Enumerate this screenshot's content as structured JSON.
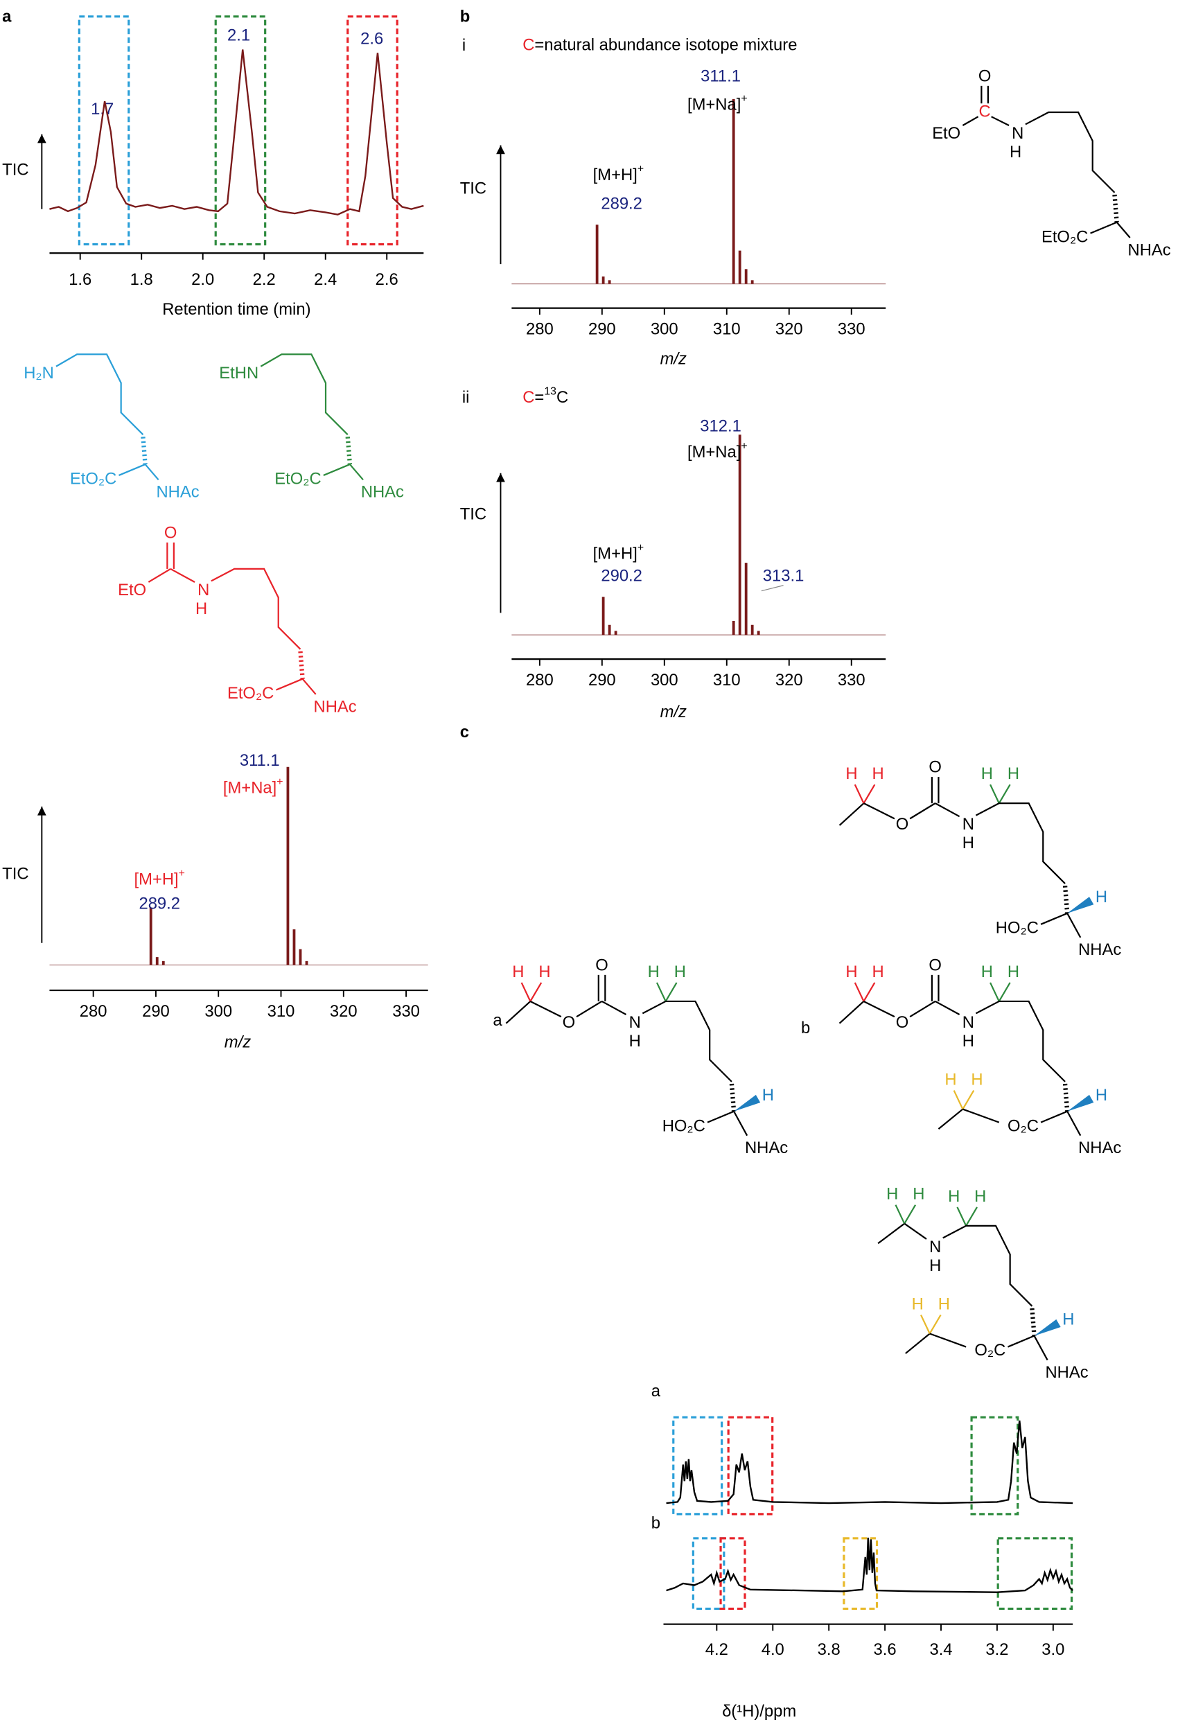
{
  "panel_labels": [
    "a",
    "b",
    "c"
  ],
  "chart_data": [
    {
      "type": "line",
      "y_label": "TIC",
      "x_label": "Retention time (min)",
      "peak_labels": [
        "1.7",
        "2.1",
        "2.6"
      ],
      "x": [
        1.5,
        1.53,
        1.56,
        1.59,
        1.62,
        1.65,
        1.68,
        1.7,
        1.72,
        1.75,
        1.78,
        1.82,
        1.86,
        1.9,
        1.94,
        1.98,
        2.02,
        2.05,
        2.08,
        2.1,
        2.13,
        2.16,
        2.18,
        2.21,
        2.25,
        2.3,
        2.35,
        2.4,
        2.44,
        2.48,
        2.51,
        2.53,
        2.57,
        2.6,
        2.62,
        2.65,
        2.68,
        2.72
      ],
      "values": [
        40,
        42,
        38,
        41,
        46,
        80,
        138,
        110,
        60,
        45,
        42,
        44,
        41,
        43,
        40,
        42,
        39,
        38,
        45,
        100,
        185,
        110,
        55,
        42,
        38,
        36,
        39,
        37,
        35,
        40,
        38,
        70,
        182,
        100,
        50,
        42,
        40,
        43
      ],
      "color": "#7a1a1a",
      "xlim": [
        1.5,
        2.72
      ],
      "ylim": [
        0,
        200
      ],
      "xticks": [
        1.6,
        1.8,
        {
          "value": 2,
          "label": "2.0"
        },
        2.2,
        2.4,
        2.6
      ]
    },
    {
      "type": "bar",
      "y_label": "TIC",
      "x_label": "m/z",
      "ion_labels": [
        "[M+Na]",
        "[M+H]"
      ],
      "charge": "+",
      "x": [
        289.2,
        290.2,
        291.2,
        311.1,
        312.1,
        313.1,
        314.1
      ],
      "values": [
        29,
        4,
        2,
        100,
        18,
        8,
        2
      ],
      "color": "#7a1a1a",
      "xlim": [
        273,
        333.5
      ],
      "ylim": [
        0,
        100
      ],
      "xticks": [
        280,
        290,
        300,
        310,
        320,
        330
      ]
    },
    {
      "type": "bar",
      "y_label": "TIC",
      "x_label": "m/z",
      "ion_labels": [
        "[M+Na]",
        "[M+H]"
      ],
      "charge": "+",
      "subtitle_parts": [
        "i",
        "C",
        "=natural abundance isotope mixture"
      ],
      "x": [
        289.2,
        290.2,
        291.2,
        311.1,
        312.1,
        313.1,
        314.1
      ],
      "values": [
        32,
        4,
        2,
        100,
        18,
        8,
        2
      ],
      "color": "#7a1a1a",
      "xlim": [
        275.5,
        335.5
      ],
      "ylim": [
        0,
        100
      ],
      "xticks": [
        280,
        290,
        300,
        310,
        320,
        330
      ]
    },
    {
      "type": "bar",
      "y_label": "TIC",
      "x_label": "m/z",
      "ion_labels": [
        "[M+Na]",
        "[M+H]"
      ],
      "charge": "+",
      "subtitle_parts": [
        "ii",
        "C",
        "=",
        "13",
        "C"
      ],
      "x": [
        290.2,
        291.2,
        292.2,
        311.1,
        312.1,
        313.1,
        314.1,
        315.1
      ],
      "values": [
        19,
        5,
        2,
        7,
        100,
        36,
        5,
        2
      ],
      "color": "#7a1a1a",
      "xlim": [
        275.5,
        335.5
      ],
      "ylim": [
        0,
        100
      ],
      "xticks": [
        280,
        290,
        300,
        310,
        320,
        330
      ]
    },
    {
      "type": "line",
      "title": "a",
      "color": "#000000",
      "x": [
        4.38,
        4.34,
        4.33,
        4.32,
        4.315,
        4.31,
        4.305,
        4.3,
        4.295,
        4.29,
        4.28,
        4.27,
        4.22,
        4.16,
        4.14,
        4.13,
        4.12,
        4.11,
        4.1,
        4.09,
        4.08,
        4.07,
        4.0,
        3.8,
        3.6,
        3.4,
        3.2,
        3.16,
        3.15,
        3.14,
        3.13,
        3.12,
        3.11,
        3.1,
        3.09,
        3.08,
        3.05,
        2.93
      ],
      "values": [
        0,
        1,
        5,
        35,
        20,
        38,
        22,
        40,
        20,
        30,
        10,
        2,
        1,
        2,
        8,
        35,
        28,
        45,
        30,
        38,
        15,
        3,
        1,
        0,
        1,
        0,
        1,
        3,
        20,
        55,
        45,
        75,
        50,
        60,
        20,
        5,
        1,
        0
      ],
      "xlim": [
        4.39,
        2.93
      ],
      "ylim": [
        0,
        100
      ]
    },
    {
      "type": "line",
      "title": "b",
      "color": "#000000",
      "x_label": "δ(¹H)/ppm",
      "x": [
        4.38,
        4.35,
        4.32,
        4.28,
        4.25,
        4.22,
        4.21,
        4.2,
        4.19,
        4.17,
        4.16,
        4.15,
        4.14,
        4.12,
        4.08,
        3.9,
        3.75,
        3.68,
        3.67,
        3.665,
        3.66,
        3.655,
        3.65,
        3.645,
        3.64,
        3.635,
        3.63,
        3.5,
        3.2,
        3.1,
        3.07,
        3.05,
        3.04,
        3.03,
        3.02,
        3.01,
        3.0,
        2.99,
        2.98,
        2.97,
        2.96,
        2.95,
        2.94,
        2.93
      ],
      "values": [
        2,
        5,
        10,
        8,
        12,
        20,
        10,
        22,
        12,
        15,
        24,
        14,
        20,
        8,
        3,
        2,
        1,
        3,
        40,
        20,
        62,
        25,
        60,
        22,
        45,
        10,
        2,
        1,
        0,
        2,
        8,
        15,
        10,
        22,
        14,
        25,
        16,
        24,
        12,
        20,
        10,
        15,
        5,
        2
      ],
      "xlim": [
        4.39,
        2.93
      ],
      "ylim": [
        0,
        100
      ],
      "xticks": [
        4.2,
        {
          "value": 4,
          "label": "4.0"
        },
        3.8,
        3.6,
        3.4,
        3.2,
        {
          "value": 3,
          "label": "3.0"
        }
      ]
    }
  ],
  "structures": [
    {
      "labels": [
        "H₂N",
        "EtO₂C",
        "NHAc"
      ]
    },
    {
      "labels": [
        "EtHN",
        "EtO₂C",
        "NHAc"
      ]
    },
    {
      "labels": [
        "O",
        "EtO",
        "N",
        "H",
        "EtO₂C",
        "NHAc"
      ]
    },
    {
      "labels": [
        "O",
        "C",
        "EtO",
        "N",
        "H",
        "EtO₂C",
        "NHAc"
      ]
    },
    {
      "labels": [
        "H",
        "H",
        "O",
        "O",
        "N",
        "H",
        "H",
        "H",
        "HO₂C",
        "H",
        "NHAc"
      ]
    },
    {
      "labels": [
        "H",
        "H",
        "O",
        "O",
        "N",
        "H",
        "H",
        "H",
        "HO₂C",
        "H",
        "NHAc"
      ]
    },
    {
      "labels": [
        "H",
        "H",
        "O",
        "O",
        "N",
        "H",
        "H",
        "H",
        "H",
        "H",
        "O₂C",
        "H",
        "NHAc"
      ]
    },
    {
      "labels": [
        "H",
        "H",
        "N",
        "H",
        "H",
        "H",
        "H",
        "H",
        "O₂C",
        "H",
        "NHAc"
      ]
    }
  ],
  "panel_c_labels": [
    "a",
    "b"
  ]
}
